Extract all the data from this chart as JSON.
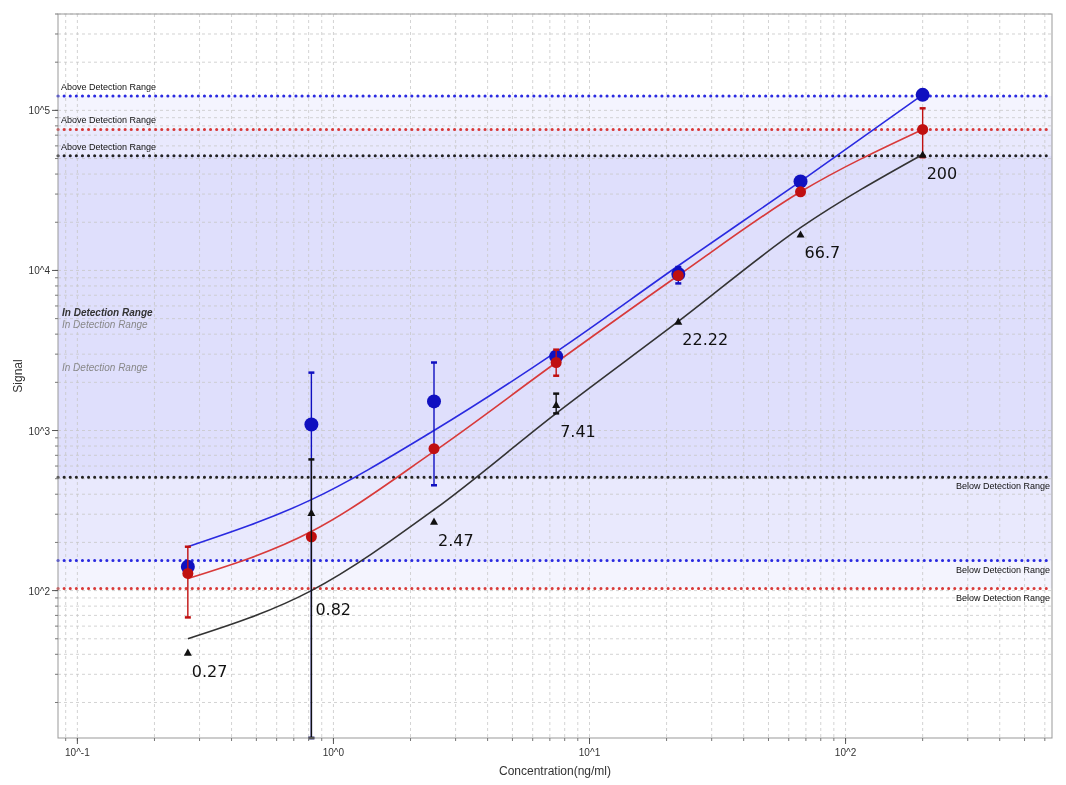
{
  "chart_data": {
    "type": "scatter",
    "xlabel": "Concentration(ng/ml)",
    "ylabel": "Signal",
    "log": "xy",
    "grid": true,
    "xlim": [
      0.084,
      640
    ],
    "ylim": [
      12,
      400000
    ],
    "xticks": [
      {
        "value": 0.1,
        "label": "10^-1"
      },
      {
        "value": 1,
        "label": "10^0"
      },
      {
        "value": 10,
        "label": "10^1"
      },
      {
        "value": 100,
        "label": "10^2"
      }
    ],
    "yticks": [
      {
        "value": 100,
        "label": "10^2"
      },
      {
        "value": 1000,
        "label": "10^3"
      },
      {
        "value": 10000,
        "label": "10^4"
      },
      {
        "value": 100000,
        "label": "10^5"
      }
    ],
    "series": [
      {
        "type": "line",
        "color": "#2a2ae0",
        "marker": "none",
        "x": [
          0.27,
          0.82,
          2.47,
          7.41,
          22.22,
          66.7,
          200
        ],
        "values": [
          188,
          370,
          1000,
          3100,
          10700,
          36000,
          125000
        ]
      },
      {
        "type": "line",
        "color": "#d83a3a",
        "marker": "none",
        "x": [
          0.27,
          0.82,
          2.47,
          7.41,
          22.22,
          66.7,
          200
        ],
        "values": [
          119,
          234,
          740,
          2660,
          9300,
          31000,
          76000
        ]
      },
      {
        "type": "line",
        "color": "#333333",
        "marker": "none",
        "x": [
          0.27,
          0.82,
          2.47,
          7.41,
          22.22,
          66.7,
          200
        ],
        "values": [
          50,
          100,
          320,
          1280,
          4800,
          18500,
          53000
        ]
      },
      {
        "color": "#1010c0",
        "marker": "circle",
        "x": [
          0.27,
          0.82,
          2.47,
          7.41,
          22.22,
          66.7,
          200
        ],
        "values": [
          141,
          1090,
          1520,
          2900,
          9500,
          36000,
          125000
        ],
        "errors": [
          null,
          [
            12,
            2300
          ],
          [
            455,
            2660
          ],
          null,
          [
            8300,
            10500
          ],
          null,
          null
        ]
      },
      {
        "color": "#c01010",
        "marker": "circle",
        "x": [
          0.27,
          0.82,
          2.47,
          7.41,
          22.22,
          66.7,
          200
        ],
        "values": [
          128,
          217,
          770,
          2660,
          9300,
          31000,
          76000
        ],
        "errors": [
          [
            68,
            188
          ],
          null,
          null,
          [
            2200,
            3200
          ],
          null,
          null,
          [
            51000,
            103000
          ]
        ]
      },
      {
        "color": "#111111",
        "marker": "triangle",
        "x": [
          0.27,
          0.82,
          2.47,
          7.41,
          22.22,
          66.7,
          200
        ],
        "values": [
          41,
          306,
          270,
          1450,
          4800,
          16800,
          53000
        ],
        "errors": [
          null,
          [
            12,
            660
          ],
          null,
          [
            1280,
            1700
          ],
          null,
          null,
          null
        ]
      }
    ],
    "bands": [
      {
        "axis": "y",
        "from": 510,
        "to": 52000,
        "label": "In Detection Range",
        "color": "#6a6af0"
      },
      {
        "axis": "y",
        "from": 154,
        "to": 123000,
        "label": "In Detection Range",
        "color": "#6a6af0"
      },
      {
        "axis": "y",
        "from": 103,
        "to": 76000,
        "label": "In Detection Range",
        "color": "#6a6af0"
      }
    ],
    "ref_lines": [
      {
        "axis": "y",
        "value": 123000,
        "label": "Above Detection Range",
        "color": "#2a2ae0",
        "line_style": "dotted"
      },
      {
        "axis": "y",
        "value": 76000,
        "label": "Above Detection Range",
        "color": "#d83a3a",
        "line_style": "dotted"
      },
      {
        "axis": "y",
        "value": 52000,
        "label": "Above Detection Range",
        "color": "#222222",
        "line_style": "dotted"
      },
      {
        "axis": "y",
        "value": 510,
        "label": "Below Detection Range",
        "color": "#222222",
        "line_style": "dotted"
      },
      {
        "axis": "y",
        "value": 154,
        "label": "Below Detection Range",
        "color": "#2a2ae0",
        "line_style": "dotted"
      },
      {
        "axis": "y",
        "value": 103,
        "label": "Below Detection Range",
        "color": "#d83a3a",
        "line_style": "dotted"
      }
    ],
    "annotations": [
      {
        "text": "0.27",
        "x": 0.27,
        "y": 41
      },
      {
        "text": "0.82",
        "x": 0.82,
        "y": 100
      },
      {
        "text": "2.47",
        "x": 2.47,
        "y": 270
      },
      {
        "text": "7.41",
        "x": 7.41,
        "y": 1280
      },
      {
        "text": "22.22",
        "x": 22.22,
        "y": 4800
      },
      {
        "text": "66.7",
        "x": 66.7,
        "y": 16800
      },
      {
        "text": "200",
        "x": 200,
        "y": 53000
      }
    ]
  }
}
